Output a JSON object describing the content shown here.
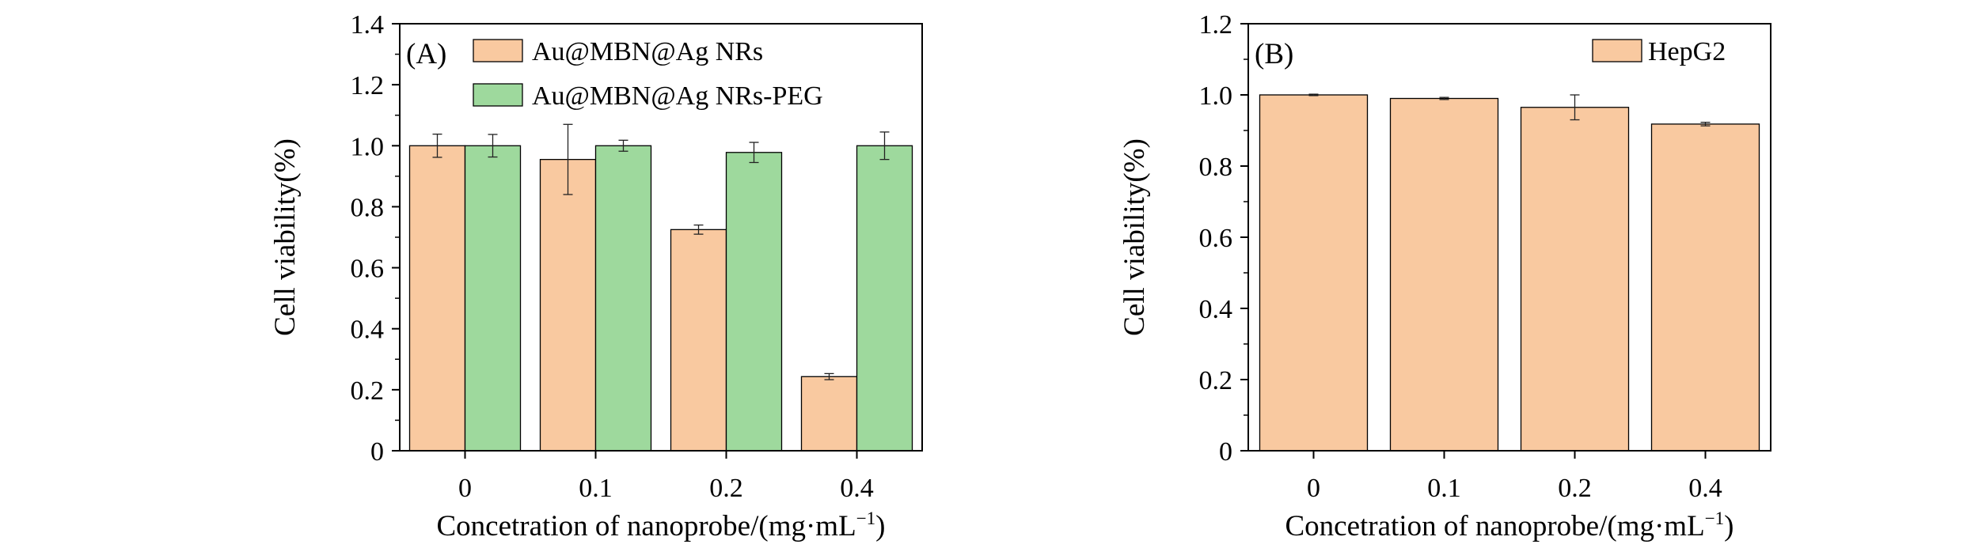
{
  "chart_data": [
    {
      "panel": "(A)",
      "type": "bar",
      "categories": [
        "0",
        "0.1",
        "0.2",
        "0.4"
      ],
      "series": [
        {
          "name": "Au@MBN@Ag NRs",
          "color": "#f9c9a0",
          "values": [
            1.0,
            0.955,
            0.725,
            0.243
          ],
          "errors": [
            0.038,
            0.115,
            0.015,
            0.01
          ]
        },
        {
          "name": "Au@MBN@Ag NRs-PEG",
          "color": "#9ed99d",
          "values": [
            1.0,
            1.0,
            0.978,
            1.0
          ],
          "errors": [
            0.037,
            0.018,
            0.033,
            0.045
          ]
        }
      ],
      "xlabel": "Concetration of nanoprobe/(mg·mL",
      "xlabel_sup": "−1",
      "xlabel_end": ")",
      "ylabel": "Cell viability(%)",
      "ylim": [
        0,
        1.4
      ],
      "yticks": [
        "0",
        "0.2",
        "0.4",
        "0.6",
        "0.8",
        "1.0",
        "1.2",
        "1.4"
      ],
      "legend": "top-right"
    },
    {
      "panel": "(B)",
      "type": "bar",
      "categories": [
        "0",
        "0.1",
        "0.2",
        "0.4"
      ],
      "series": [
        {
          "name": "HepG2",
          "color": "#f9c9a0",
          "values": [
            1.0,
            0.99,
            0.965,
            0.918
          ],
          "errors": [
            0.002,
            0.003,
            0.035,
            0.005
          ]
        }
      ],
      "xlabel": "Concetration of nanoprobe/(mg·mL",
      "xlabel_sup": "−1",
      "xlabel_end": ")",
      "ylabel": "Cell viability(%)",
      "ylim": [
        0,
        1.2
      ],
      "yticks": [
        "0",
        "0.2",
        "0.4",
        "0.6",
        "0.8",
        "1.0",
        "1.2"
      ],
      "legend": "top-right"
    }
  ]
}
